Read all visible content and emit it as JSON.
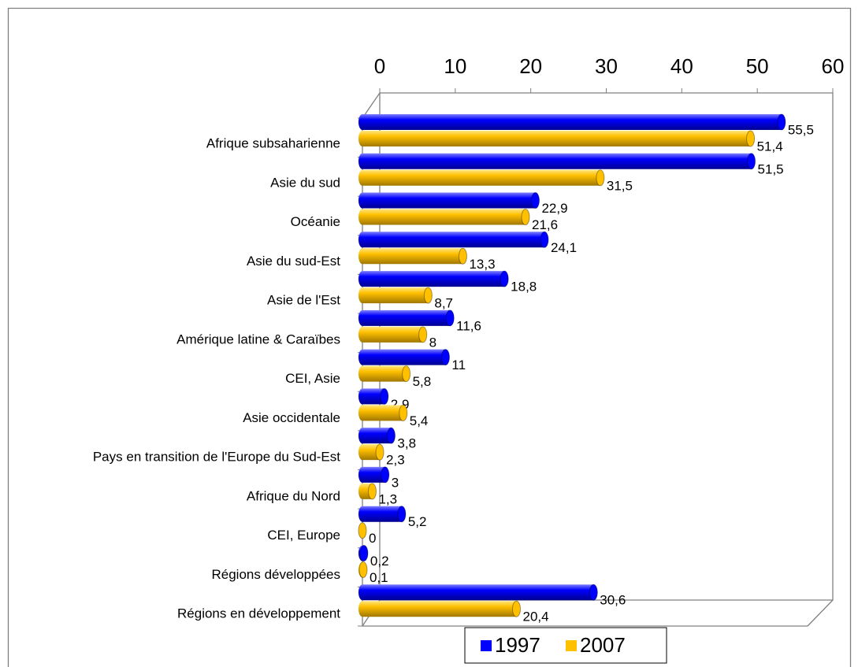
{
  "chart_data": {
    "type": "bar",
    "orientation": "horizontal",
    "categories": [
      "Afrique subsaharienne",
      "Asie du sud",
      "Océanie",
      "Asie du sud-Est",
      "Asie de l'Est",
      "Amérique latine & Caraïbes",
      "CEI, Asie",
      "Asie occidentale",
      "Pays en transition de l'Europe du Sud-Est",
      "Afrique du Nord",
      "CEI, Europe",
      "Régions développées",
      "Régions en développement"
    ],
    "series": [
      {
        "name": "1997",
        "color": "#0000ff",
        "values": [
          55.5,
          51.5,
          22.9,
          24.1,
          18.8,
          11.6,
          11,
          2.9,
          3.8,
          3,
          5.2,
          0.2,
          30.6
        ],
        "value_labels": [
          "55,5",
          "51,5",
          "22,9",
          "24,1",
          "18,8",
          "11,6",
          "11",
          "2,9",
          "3,8",
          "3",
          "5,2",
          "0,2",
          "30,6"
        ]
      },
      {
        "name": "2007",
        "color": "#ffc000",
        "values": [
          51.4,
          31.5,
          21.6,
          13.3,
          8.7,
          8,
          5.8,
          5.4,
          2.3,
          1.3,
          0,
          0.1,
          20.4
        ],
        "value_labels": [
          "51,4",
          "31,5",
          "21,6",
          "13,3",
          "8,7",
          "8",
          "5,8",
          "5,4",
          "2,3",
          "1,3",
          "0",
          "0,1",
          "20,4"
        ]
      }
    ],
    "xlim": [
      0,
      60
    ],
    "xticks": [
      0,
      10,
      20,
      30,
      40,
      50,
      60
    ],
    "grid": false,
    "legend": "bottom"
  }
}
